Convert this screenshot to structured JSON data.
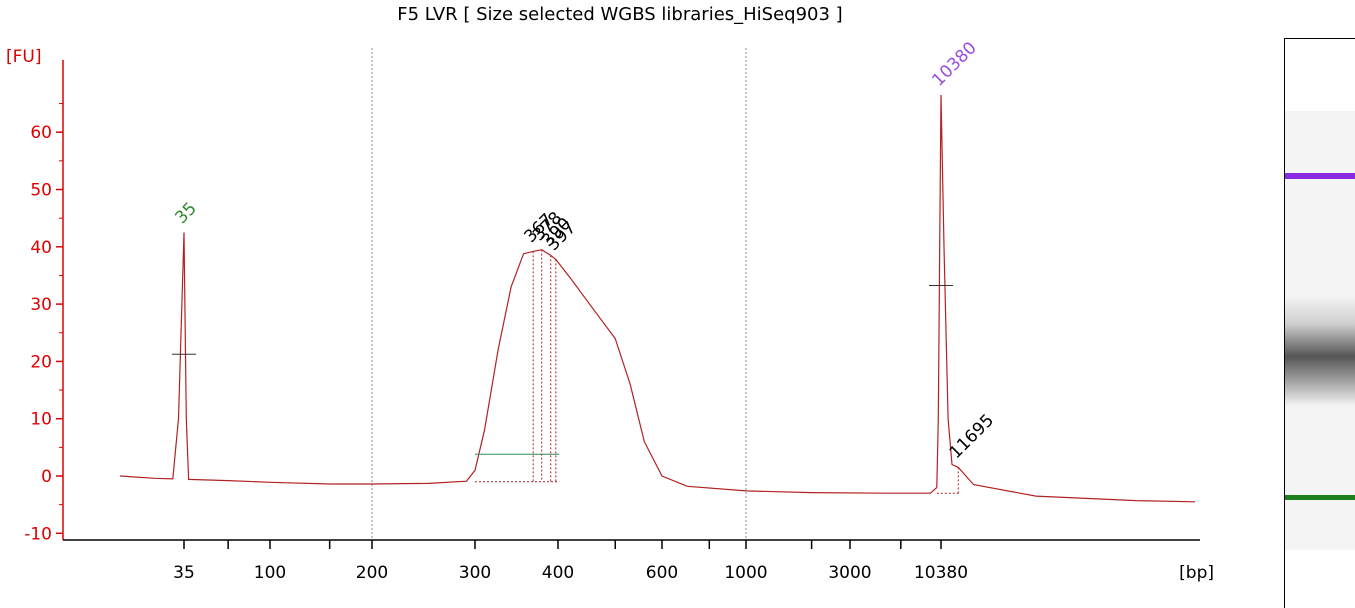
{
  "title": "F5 LVR   [ Size selected WGBS libraries_HiSeq903 ]",
  "chart_data": {
    "type": "line",
    "title": "F5 LVR   [ Size selected WGBS libraries_HiSeq903 ]",
    "ylabel": "[FU]",
    "xlabel": "[bp]",
    "ylim": [
      -12,
      72
    ],
    "y_ticks": [
      -10,
      0,
      10,
      20,
      30,
      40,
      50,
      60
    ],
    "x_tick_labels": [
      "35",
      "100",
      "200",
      "300",
      "400",
      "600",
      "1000",
      "3000",
      "10380"
    ],
    "x_scale": "electropherogram (migration-time scale)",
    "grid": "dotted vertical lines at 200 and 1000 bp",
    "series": [
      {
        "color": "#b22222",
        "points": [
          [
            "25",
            0
          ],
          [
            "30",
            -0.4
          ],
          [
            "33",
            -0.5
          ],
          [
            "34",
            10
          ],
          [
            "35",
            42.5
          ],
          [
            "36",
            10
          ],
          [
            "37",
            -0.6
          ],
          [
            "60",
            -0.8
          ],
          [
            "100",
            -1.1
          ],
          [
            "150",
            -1.4
          ],
          [
            "200",
            -1.4
          ],
          [
            "250",
            -1.3
          ],
          [
            "290",
            -0.9
          ],
          [
            "300",
            1
          ],
          [
            "310",
            8
          ],
          [
            "325",
            22
          ],
          [
            "340",
            33
          ],
          [
            "355",
            38.8
          ],
          [
            "367",
            39.2
          ],
          [
            "378",
            39.5
          ],
          [
            "390",
            38.5
          ],
          [
            "397",
            37.8
          ],
          [
            "420",
            34.5
          ],
          [
            "460",
            29
          ],
          [
            "500",
            24
          ],
          [
            "530",
            16
          ],
          [
            "560",
            6
          ],
          [
            "600",
            0
          ],
          [
            "700",
            -1.8
          ],
          [
            "1000",
            -2.6
          ],
          [
            "2000",
            -2.9
          ],
          [
            "5000",
            -3
          ],
          [
            "9000",
            -3
          ],
          [
            "9800",
            -2
          ],
          [
            "10000",
            10
          ],
          [
            "10200",
            40
          ],
          [
            "10380",
            66.5
          ],
          [
            "10600",
            40
          ],
          [
            "10900",
            10
          ],
          [
            "11200",
            2
          ],
          [
            "11695",
            1.5
          ],
          [
            "13000",
            -1.5
          ],
          [
            "20000",
            -3.5
          ],
          [
            "40000",
            -4.3
          ],
          [
            "60000",
            -4.5
          ]
        ]
      }
    ],
    "peaks": [
      {
        "label": "35",
        "color": "#2e8b2e",
        "size": 35,
        "fu": 42.5,
        "role": "lower marker"
      },
      {
        "label": "367",
        "color": "#000000",
        "size": 367,
        "fu": 39.2
      },
      {
        "label": "378",
        "color": "#000000",
        "size": 378,
        "fu": 39.5
      },
      {
        "label": "390",
        "color": "#000000",
        "size": 390,
        "fu": 38.5
      },
      {
        "label": "397",
        "color": "#000000",
        "size": 397,
        "fu": 37.8
      },
      {
        "label": "10380",
        "color": "#9b4de0",
        "size": 10380,
        "fu": 66.5,
        "role": "upper marker"
      },
      {
        "label": "11695",
        "color": "#000000",
        "size": 11695,
        "fu": 1.5
      }
    ]
  },
  "gel": {
    "bands": [
      {
        "name": "upper-marker-band",
        "color": "#8a2be2",
        "size": "10380"
      },
      {
        "name": "library-smear-band",
        "color": "#555555",
        "size": "300-600"
      },
      {
        "name": "lower-marker-band",
        "color": "#1e7f1e",
        "size": "35"
      }
    ]
  },
  "colors": {
    "axis": "#e00000",
    "trace": "#b22222",
    "lower_marker": "#2e8b2e",
    "upper_marker": "#9b4de0"
  }
}
